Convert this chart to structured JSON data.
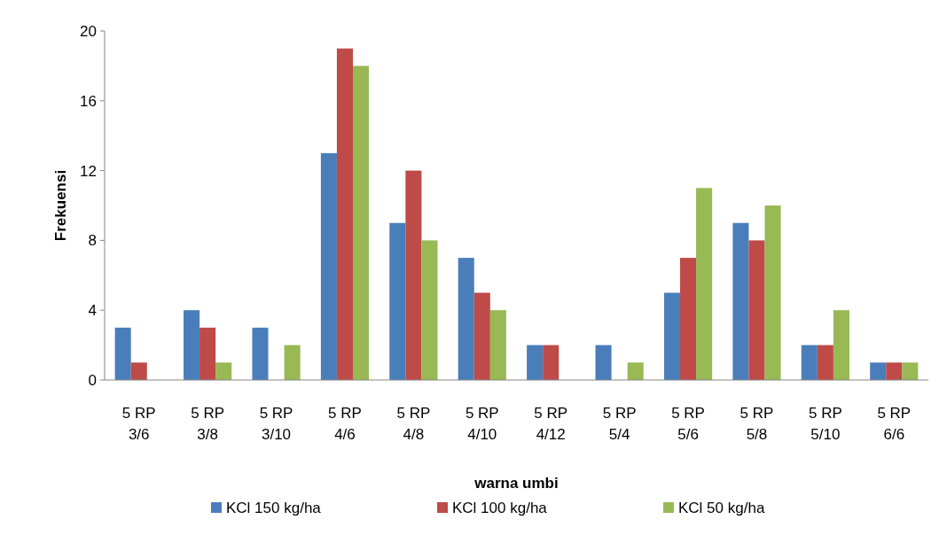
{
  "chart_data": {
    "type": "bar",
    "xlabel": "warna umbi",
    "ylabel": "Frekuensi",
    "categories": [
      "5 RP 3/6",
      "5 RP 3/8",
      "5 RP 3/10",
      "5 RP 4/6",
      "5 RP 4/8",
      "5 RP 4/10",
      "5 RP 4/12",
      "5 RP 5/4",
      "5 RP 5/6",
      "5 RP 5/8",
      "5 RP 5/10",
      "5 RP 6/6"
    ],
    "series": [
      {
        "name": "KCl 150 kg/ha",
        "color": "#4a7ebb",
        "values": [
          3,
          4,
          3,
          13,
          9,
          7,
          2,
          2,
          5,
          9,
          2,
          1
        ]
      },
      {
        "name": "KCl 100 kg/ha",
        "color": "#be4b48",
        "values": [
          1,
          3,
          0,
          19,
          12,
          5,
          2,
          0,
          7,
          8,
          2,
          1
        ]
      },
      {
        "name": "KCl 50 kg/ha",
        "color": "#98b954",
        "values": [
          0,
          1,
          2,
          18,
          8,
          4,
          0,
          1,
          11,
          10,
          4,
          1
        ]
      }
    ],
    "ylim": [
      0,
      20
    ],
    "yticks": [
      0,
      4,
      8,
      12,
      16,
      20
    ],
    "grid": false,
    "legend": "bottom"
  }
}
